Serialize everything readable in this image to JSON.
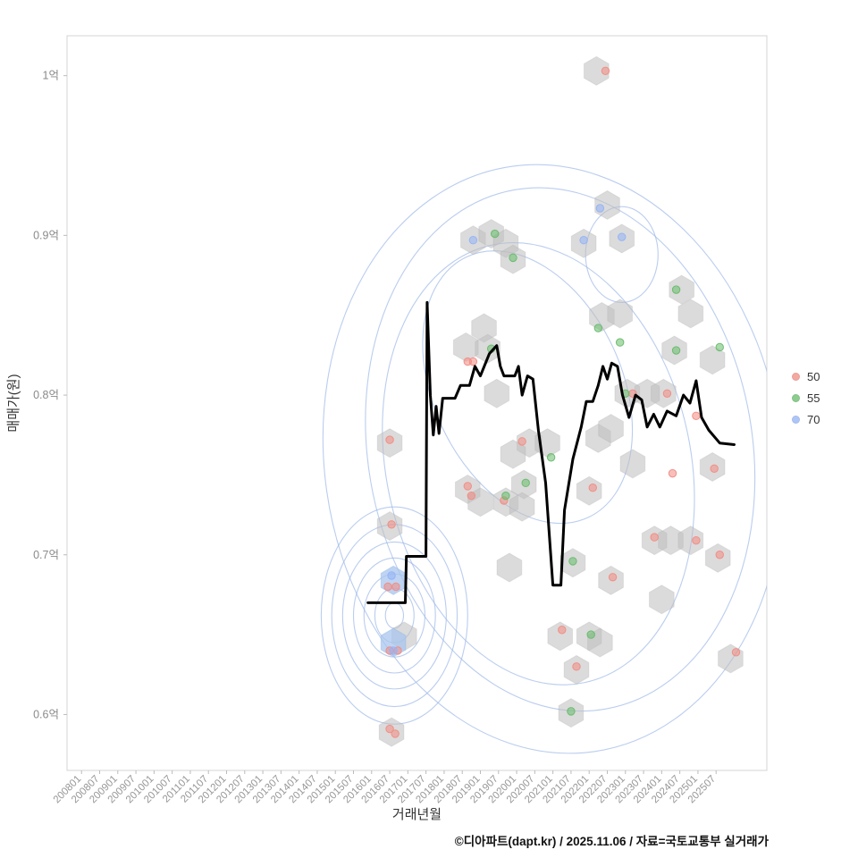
{
  "caption": "©디아파트(dapt.kr) / 2025.11.06 / 자료=국토교통부 실거래가",
  "chart_data": {
    "type": "scatter",
    "title": "",
    "xlabel": "거래년월",
    "ylabel": "매매가(원)",
    "x_tick_labels": [
      "200801",
      "200807",
      "200901",
      "200907",
      "201001",
      "201007",
      "201101",
      "201107",
      "201201",
      "201207",
      "201301",
      "201307",
      "201401",
      "201407",
      "201501",
      "201507",
      "201601",
      "201607",
      "201701",
      "201707",
      "201801",
      "201807",
      "201901",
      "201907",
      "202001",
      "202007",
      "202101",
      "202107",
      "202201",
      "202207",
      "202301",
      "202307",
      "202401",
      "202407",
      "202501",
      "202507"
    ],
    "y_ticks": [
      {
        "value": 1.0,
        "label": "1억"
      },
      {
        "value": 0.9,
        "label": "0.9억"
      },
      {
        "value": 0.8,
        "label": "0.8억"
      },
      {
        "value": 0.7,
        "label": "0.7억"
      },
      {
        "value": 0.6,
        "label": "0.6억"
      }
    ],
    "x_range": [
      2007.6,
      2026.9
    ],
    "y_range": [
      0.565,
      1.025
    ],
    "grid": false,
    "legend": {
      "position": "right",
      "items": [
        {
          "label": "50",
          "color": "#f28b82"
        },
        {
          "label": "55",
          "color": "#66bb6a"
        },
        {
          "label": "70",
          "color": "#94b3f5"
        }
      ]
    },
    "hexbin": {
      "fill": "#bdbdbd",
      "fill_opacity": 0.55,
      "highlight_fill": "#a8c6ee",
      "radius_px": 16,
      "cells": [
        [
          2022.2,
          1.003
        ],
        [
          2022.5,
          0.919
        ],
        [
          2018.8,
          0.897
        ],
        [
          2019.3,
          0.901
        ],
        [
          2019.7,
          0.895
        ],
        [
          2019.9,
          0.885
        ],
        [
          2021.85,
          0.895
        ],
        [
          2022.9,
          0.898
        ],
        [
          2024.55,
          0.866
        ],
        [
          2024.8,
          0.851
        ],
        [
          2022.35,
          0.849
        ],
        [
          2022.85,
          0.851
        ],
        [
          2019.1,
          0.842
        ],
        [
          2018.6,
          0.83
        ],
        [
          2019.2,
          0.829
        ],
        [
          2019.45,
          0.801
        ],
        [
          2023.05,
          0.801
        ],
        [
          2023.6,
          0.801
        ],
        [
          2024.05,
          0.801
        ],
        [
          2024.35,
          0.828
        ],
        [
          2025.4,
          0.822
        ],
        [
          2020.35,
          0.77
        ],
        [
          2020.85,
          0.77
        ],
        [
          2019.9,
          0.763
        ],
        [
          2022.25,
          0.773
        ],
        [
          2022.6,
          0.779
        ],
        [
          2016.5,
          0.77
        ],
        [
          2023.2,
          0.757
        ],
        [
          2025.4,
          0.755
        ],
        [
          2018.65,
          0.741
        ],
        [
          2020.2,
          0.744
        ],
        [
          2019.7,
          0.733
        ],
        [
          2019.0,
          0.733
        ],
        [
          2020.15,
          0.73
        ],
        [
          2022.0,
          0.74
        ],
        [
          2016.5,
          0.718
        ],
        [
          2023.8,
          0.709
        ],
        [
          2024.25,
          0.709
        ],
        [
          2024.8,
          0.709
        ],
        [
          2019.8,
          0.692
        ],
        [
          2025.55,
          0.698
        ],
        [
          2021.55,
          0.695
        ],
        [
          2022.6,
          0.684
        ],
        [
          2024.0,
          0.672
        ],
        [
          2021.2,
          0.649
        ],
        [
          2022.0,
          0.649
        ],
        [
          2022.3,
          0.645
        ],
        [
          2016.9,
          0.649
        ],
        [
          2025.9,
          0.635
        ],
        [
          2021.65,
          0.628
        ],
        [
          2021.5,
          0.601
        ],
        [
          2016.55,
          0.589
        ]
      ],
      "highlight_cells": [
        [
          2016.6,
          0.684
        ],
        [
          2016.6,
          0.645
        ]
      ]
    },
    "density_contours": {
      "color": "#9db8e8",
      "rings": [
        {
          "cx": 2016.63,
          "cy": 0.662,
          "rx": 0.25,
          "ry": 0.008,
          "rot": 0
        },
        {
          "cx": 2016.63,
          "cy": 0.662,
          "rx": 0.54,
          "ry": 0.017,
          "rot": 0
        },
        {
          "cx": 2016.63,
          "cy": 0.662,
          "rx": 0.84,
          "ry": 0.026,
          "rot": 0
        },
        {
          "cx": 2016.63,
          "cy": 0.662,
          "rx": 1.13,
          "ry": 0.036,
          "rot": 0
        },
        {
          "cx": 2016.63,
          "cy": 0.662,
          "rx": 1.43,
          "ry": 0.046,
          "rot": 0
        },
        {
          "cx": 2016.63,
          "cy": 0.662,
          "rx": 1.73,
          "ry": 0.057,
          "rot": 0
        },
        {
          "cx": 2016.63,
          "cy": 0.662,
          "rx": 2.02,
          "ry": 0.068,
          "rot": 0
        },
        {
          "cx": 2020.3,
          "cy": 0.805,
          "rx": 2.6,
          "ry": 0.09,
          "rot": -25
        },
        {
          "cx": 2022.9,
          "cy": 0.888,
          "rx": 1.0,
          "ry": 0.03,
          "rot": 0
        },
        {
          "cx": 2020.6,
          "cy": 0.757,
          "rx": 4.2,
          "ry": 0.14,
          "rot": -12
        },
        {
          "cx": 2021.2,
          "cy": 0.766,
          "rx": 5.3,
          "ry": 0.165,
          "rot": -10
        },
        {
          "cx": 2021.0,
          "cy": 0.76,
          "rx": 6.3,
          "ry": 0.185,
          "rot": -8
        }
      ]
    },
    "series": [
      {
        "name": "50",
        "color": "#f28b82",
        "points": [
          [
            2022.45,
            1.003
          ],
          [
            2018.65,
            0.821
          ],
          [
            2018.8,
            0.821
          ],
          [
            2023.2,
            0.801
          ],
          [
            2024.15,
            0.801
          ],
          [
            2024.95,
            0.787
          ],
          [
            2016.5,
            0.772
          ],
          [
            2020.15,
            0.771
          ],
          [
            2024.3,
            0.751
          ],
          [
            2025.45,
            0.754
          ],
          [
            2018.65,
            0.743
          ],
          [
            2018.75,
            0.737
          ],
          [
            2019.65,
            0.734
          ],
          [
            2022.1,
            0.742
          ],
          [
            2023.8,
            0.711
          ],
          [
            2024.95,
            0.709
          ],
          [
            2025.6,
            0.7
          ],
          [
            2016.45,
            0.68
          ],
          [
            2016.67,
            0.68
          ],
          [
            2022.65,
            0.686
          ],
          [
            2021.25,
            0.653
          ],
          [
            2016.5,
            0.64
          ],
          [
            2016.72,
            0.64
          ],
          [
            2021.65,
            0.63
          ],
          [
            2026.05,
            0.639
          ],
          [
            2016.5,
            0.591
          ],
          [
            2016.65,
            0.588
          ],
          [
            2016.55,
            0.719
          ]
        ]
      },
      {
        "name": "55",
        "color": "#66bb6a",
        "points": [
          [
            2019.4,
            0.901
          ],
          [
            2019.9,
            0.886
          ],
          [
            2024.4,
            0.866
          ],
          [
            2022.25,
            0.842
          ],
          [
            2022.85,
            0.833
          ],
          [
            2025.6,
            0.83
          ],
          [
            2020.95,
            0.761
          ],
          [
            2020.25,
            0.745
          ],
          [
            2019.7,
            0.737
          ],
          [
            2021.55,
            0.696
          ],
          [
            2022.05,
            0.65
          ],
          [
            2021.5,
            0.602
          ],
          [
            2019.3,
            0.829
          ],
          [
            2023.0,
            0.801
          ],
          [
            2024.4,
            0.828
          ]
        ]
      },
      {
        "name": "70",
        "color": "#94b3f5",
        "points": [
          [
            2018.8,
            0.897
          ],
          [
            2021.85,
            0.897
          ],
          [
            2022.3,
            0.917
          ],
          [
            2022.9,
            0.899
          ],
          [
            2016.55,
            0.687
          ],
          [
            2016.6,
            0.64
          ]
        ]
      }
    ],
    "trend_line": {
      "color": "#000000",
      "width": 3,
      "points": [
        [
          2015.9,
          0.67
        ],
        [
          2016.93,
          0.67
        ],
        [
          2016.96,
          0.699
        ],
        [
          2017.5,
          0.699
        ],
        [
          2017.53,
          0.858
        ],
        [
          2017.62,
          0.8
        ],
        [
          2017.7,
          0.775
        ],
        [
          2017.78,
          0.793
        ],
        [
          2017.86,
          0.776
        ],
        [
          2017.96,
          0.798
        ],
        [
          2018.3,
          0.798
        ],
        [
          2018.45,
          0.806
        ],
        [
          2018.7,
          0.806
        ],
        [
          2018.85,
          0.818
        ],
        [
          2019.0,
          0.812
        ],
        [
          2019.25,
          0.826
        ],
        [
          2019.45,
          0.831
        ],
        [
          2019.55,
          0.818
        ],
        [
          2019.65,
          0.812
        ],
        [
          2019.95,
          0.812
        ],
        [
          2020.05,
          0.818
        ],
        [
          2020.15,
          0.8
        ],
        [
          2020.3,
          0.812
        ],
        [
          2020.45,
          0.81
        ],
        [
          2020.6,
          0.778
        ],
        [
          2020.8,
          0.745
        ],
        [
          2021.0,
          0.681
        ],
        [
          2021.22,
          0.681
        ],
        [
          2021.32,
          0.728
        ],
        [
          2021.55,
          0.76
        ],
        [
          2021.78,
          0.78
        ],
        [
          2021.92,
          0.796
        ],
        [
          2022.1,
          0.796
        ],
        [
          2022.25,
          0.806
        ],
        [
          2022.38,
          0.818
        ],
        [
          2022.5,
          0.81
        ],
        [
          2022.62,
          0.82
        ],
        [
          2022.78,
          0.818
        ],
        [
          2022.92,
          0.8
        ],
        [
          2023.1,
          0.786
        ],
        [
          2023.28,
          0.8
        ],
        [
          2023.45,
          0.797
        ],
        [
          2023.6,
          0.78
        ],
        [
          2023.78,
          0.788
        ],
        [
          2023.95,
          0.78
        ],
        [
          2024.15,
          0.79
        ],
        [
          2024.4,
          0.787
        ],
        [
          2024.6,
          0.8
        ],
        [
          2024.78,
          0.795
        ],
        [
          2024.95,
          0.809
        ],
        [
          2025.1,
          0.786
        ],
        [
          2025.3,
          0.778
        ],
        [
          2025.6,
          0.77
        ],
        [
          2026.0,
          0.769
        ]
      ]
    }
  }
}
